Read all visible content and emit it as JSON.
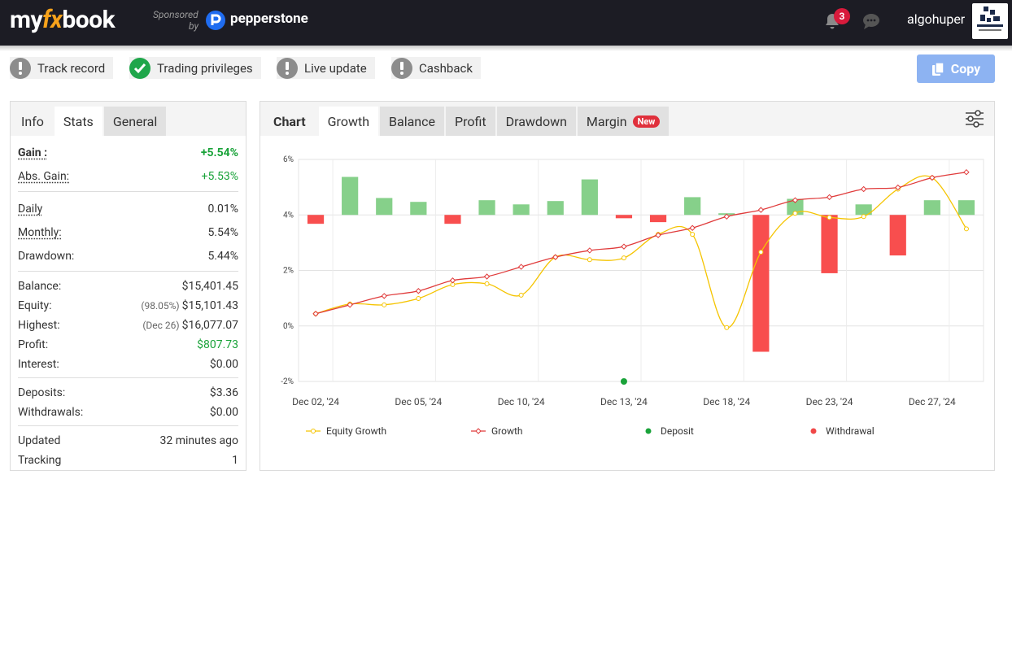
{
  "header": {
    "logo": [
      "my",
      "fx",
      "book"
    ],
    "sponsored": "Sponsored",
    "by": "by",
    "sponsor": "pepperstone",
    "notification_count": 3,
    "username": "algohuper"
  },
  "status_items": [
    {
      "label": "Track record",
      "state": "warning"
    },
    {
      "label": "Trading privileges",
      "state": "ok"
    },
    {
      "label": "Live update",
      "state": "warning"
    },
    {
      "label": "Cashback",
      "state": "warning"
    }
  ],
  "copy_button": "Copy",
  "stats_panel": {
    "tabs": [
      "Info",
      "Stats",
      "General"
    ],
    "active_tab": 1,
    "groups": [
      [
        {
          "label": "Gain :",
          "value": "+5.54%",
          "positive": true,
          "bold": true,
          "dotted": true
        },
        {
          "label": "Abs. Gain:",
          "value": "+5.53%",
          "positive": true,
          "dotted": true
        }
      ],
      [
        {
          "label": "Daily",
          "value": "0.01%",
          "dotted": true
        },
        {
          "label": "Monthly:",
          "value": "5.54%",
          "dotted": true
        },
        {
          "label": "Drawdown:",
          "value": "5.44%"
        }
      ],
      [
        {
          "label": "Balance:",
          "value": "$15,401.45"
        },
        {
          "label": "Equity:",
          "note": "(98.05%)",
          "value": "$15,101.43"
        },
        {
          "label": "Highest:",
          "note": "(Dec 26)",
          "value": "$16,077.07"
        },
        {
          "label": "Profit:",
          "value": "$807.73",
          "positive": true
        },
        {
          "label": "Interest:",
          "value": "$0.00"
        }
      ],
      [
        {
          "label": "Deposits:",
          "value": "$3.36"
        },
        {
          "label": "Withdrawals:",
          "value": "$0.00"
        }
      ],
      [
        {
          "label": "Updated",
          "value": "32 minutes ago"
        },
        {
          "label": "Tracking",
          "value": "1"
        }
      ]
    ]
  },
  "chart_panel": {
    "title": "Chart",
    "tabs": [
      "Growth",
      "Balance",
      "Profit",
      "Drawdown",
      "Margin"
    ],
    "active_tab": 0,
    "badge": {
      "tab": 4,
      "text": "New"
    }
  },
  "chart_data": {
    "type": "line",
    "categories": [
      "Dec 02, '24",
      null,
      null,
      "Dec 05, '24",
      null,
      null,
      "Dec 10, '24",
      null,
      null,
      "Dec 13, '24",
      null,
      null,
      "Dec 18, '24",
      null,
      null,
      "Dec 23, '24",
      null,
      null,
      "Dec 27, '24",
      null
    ],
    "ylim": [
      -2,
      6
    ],
    "yticks": [
      {
        "value": -2,
        "label": "-2%"
      },
      {
        "value": 0,
        "label": "0%"
      },
      {
        "value": 2,
        "label": "2%"
      },
      {
        "value": 4,
        "label": "4%"
      },
      {
        "value": 6,
        "label": "6%"
      }
    ],
    "y2lim": [
      -6,
      2
    ],
    "grid": true,
    "legend": "bottom",
    "series": [
      {
        "name": "Equity Growth",
        "color": "#f5c400",
        "marker": "circle",
        "smooth": true,
        "values": [
          0.44,
          0.79,
          0.76,
          0.99,
          1.49,
          1.52,
          1.11,
          2.48,
          2.39,
          2.45,
          3.3,
          3.3,
          -0.06,
          2.66,
          4.06,
          3.91,
          3.94,
          4.93,
          5.34,
          3.5
        ]
      },
      {
        "name": "Growth",
        "color": "#e03b3b",
        "marker": "diamond",
        "smooth": true,
        "values": [
          0.44,
          0.76,
          1.08,
          1.26,
          1.64,
          1.78,
          2.13,
          2.48,
          2.72,
          2.86,
          3.27,
          3.53,
          3.94,
          4.18,
          4.53,
          4.64,
          4.93,
          4.99,
          5.34,
          5.54
        ]
      },
      {
        "name": "Deposit",
        "color": "#1aa33a",
        "marker": "dot",
        "values": [
          null,
          null,
          null,
          null,
          null,
          null,
          null,
          null,
          null,
          -2,
          null,
          null,
          null,
          null,
          null,
          null,
          null,
          null,
          null,
          null
        ]
      },
      {
        "name": "Withdrawal",
        "color": "#f04848",
        "marker": "dot",
        "values": [
          null,
          null,
          null,
          null,
          null,
          null,
          null,
          null,
          null,
          null,
          null,
          null,
          null,
          null,
          null,
          null,
          null,
          null,
          null,
          null
        ]
      },
      {
        "type": "bar",
        "axis": "y2",
        "positive_color": "#86d08a",
        "negative_color": "#f84e4e",
        "values": [
          -0.32,
          1.37,
          0.61,
          0.47,
          -0.32,
          0.53,
          0.38,
          0.5,
          1.28,
          -0.12,
          -0.26,
          0.64,
          0.06,
          -4.93,
          0.58,
          -2.1,
          0.38,
          -1.46,
          0.53,
          0.53
        ]
      }
    ]
  }
}
